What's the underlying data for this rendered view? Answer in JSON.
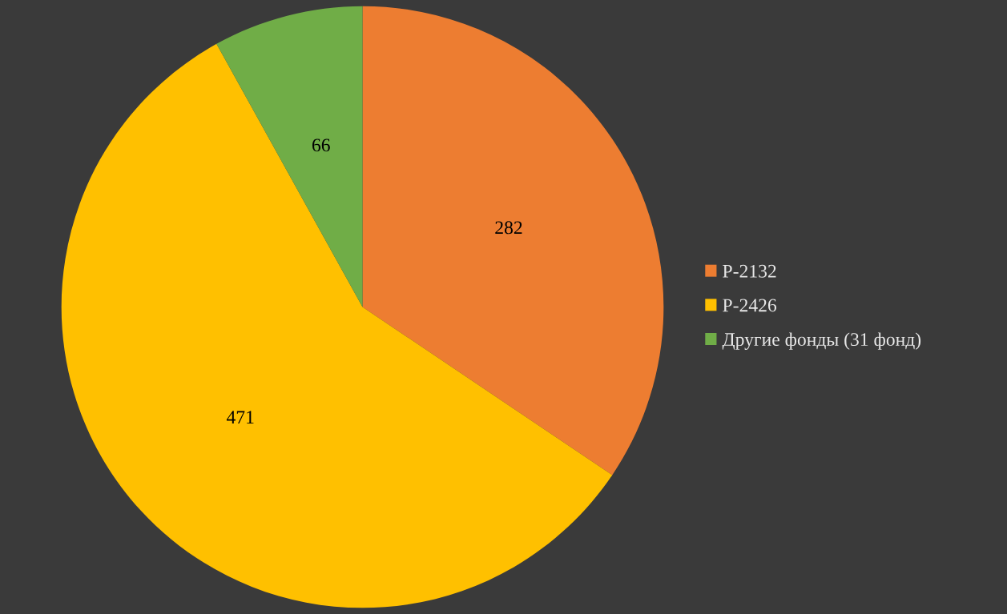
{
  "chart_data": {
    "type": "pie",
    "categories": [
      "Р-2132",
      "Р-2426",
      "Другие фонды (31 фонд)"
    ],
    "values": [
      282,
      471,
      66
    ],
    "colors": [
      "#ed7d31",
      "#ffc000",
      "#70ad47"
    ],
    "data_labels": true,
    "legend": "right"
  }
}
